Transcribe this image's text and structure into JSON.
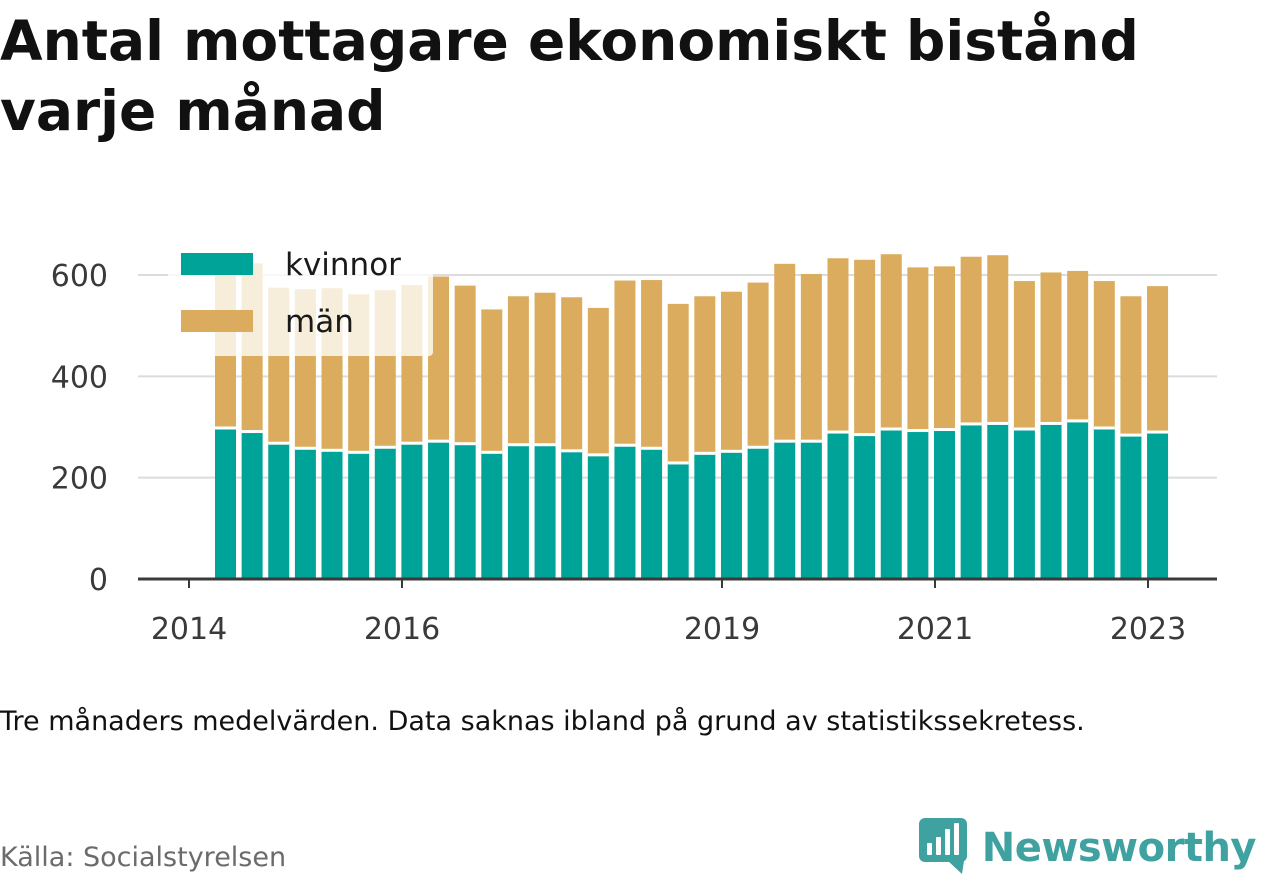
{
  "title": "Antal mottagare ekonomiskt bistånd varje månad",
  "note": "Tre månaders medelvärden. Data saknas ibland på grund av statistikssekretess.",
  "source": "Källa: Socialstyrelsen",
  "brand": {
    "name": "Newsworthy",
    "icon": "newsworthy-chart-bubble-icon"
  },
  "colors": {
    "kvinnor": "#00a398",
    "man": "#dbac5d",
    "grid": "#dcdcdc",
    "axis": "#3a3a3a",
    "brand": "#3fa2a0"
  },
  "chart_data": {
    "type": "bar",
    "stacked": true,
    "x_tick_labels": [
      "2014",
      "2016",
      "2019",
      "2021",
      "2023"
    ],
    "y_ticks": [
      0,
      200,
      400,
      600
    ],
    "ylim": [
      0,
      650
    ],
    "grid": true,
    "legend_position": "top-left",
    "series": [
      {
        "name": "kvinnor",
        "color": "#00a398",
        "values": [
          298,
          291,
          268,
          258,
          254,
          250,
          260,
          268,
          272,
          267,
          250,
          265,
          265,
          253,
          245,
          264,
          258,
          229,
          248,
          252,
          260,
          272,
          272,
          290,
          285,
          296,
          293,
          295,
          306,
          307,
          296,
          307,
          312,
          298,
          284,
          290
        ]
      },
      {
        "name": "män",
        "color": "#dbac5d",
        "values": [
          328,
          332,
          307,
          314,
          320,
          312,
          310,
          312,
          325,
          312,
          282,
          293,
          300,
          303,
          290,
          325,
          332,
          314,
          310,
          315,
          325,
          350,
          330,
          343,
          345,
          345,
          322,
          322,
          330,
          332,
          292,
          298,
          296,
          290,
          274,
          288
        ]
      }
    ]
  }
}
